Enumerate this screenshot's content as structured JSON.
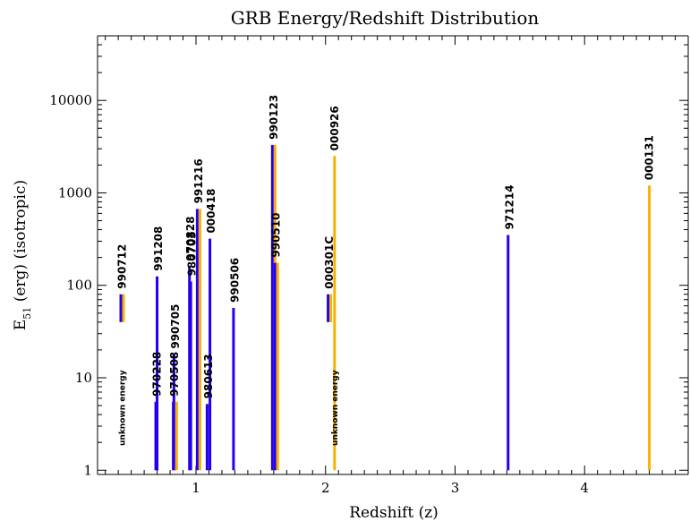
{
  "chart_data": {
    "type": "bar",
    "title": "GRB Energy/Redshift Distribution",
    "xlabel": "Redshift (z)",
    "ylabel_main": "E",
    "ylabel_sub": "51",
    "ylabel_rest": " (erg) (isotropic)",
    "xlim": [
      0.24,
      4.8
    ],
    "ylim": [
      0.9,
      50000
    ],
    "yscale": "log",
    "x_ticks": [
      1,
      2,
      3,
      4
    ],
    "x_tick_labels": [
      "1",
      "2",
      "3",
      "4"
    ],
    "y_ticks": [
      1,
      10,
      100,
      1000,
      10000
    ],
    "y_tick_labels": [
      "1",
      "10",
      "100",
      "1000",
      "10000"
    ],
    "colors": {
      "blue": "#2200ee",
      "orange": "#f8b000"
    },
    "bursts": [
      {
        "name": "990712",
        "z": 0.43,
        "blue": [
          40,
          80
        ],
        "orange": [
          40,
          80
        ],
        "note": "unknown energy"
      },
      {
        "name": "970228",
        "z": 0.7,
        "blue": [
          1,
          5.5
        ]
      },
      {
        "name": "991208",
        "z": 0.71,
        "blue": [
          1,
          125
        ]
      },
      {
        "name": "970508",
        "z": 0.835,
        "blue": [
          1,
          5.5
        ]
      },
      {
        "name": "990705",
        "z": 0.84,
        "blue": [
          1,
          18
        ],
        "orange": [
          1,
          5.5
        ]
      },
      {
        "name": "970828",
        "z": 0.96,
        "blue": [
          1,
          160
        ]
      },
      {
        "name": "980703",
        "z": 0.97,
        "blue": [
          1,
          110
        ]
      },
      {
        "name": "991216",
        "z": 1.02,
        "blue": [
          1,
          670
        ],
        "orange": [
          1,
          670
        ]
      },
      {
        "name": "980613",
        "z": 1.096,
        "blue": [
          1,
          5.2
        ]
      },
      {
        "name": "000418",
        "z": 1.118,
        "blue": [
          1,
          320
        ]
      },
      {
        "name": "990506",
        "z": 1.3,
        "blue": [
          1,
          57
        ]
      },
      {
        "name": "990123",
        "z": 1.6,
        "blue": [
          1,
          3300
        ],
        "orange": [
          1,
          3300
        ]
      },
      {
        "name": "990510",
        "z": 1.62,
        "blue": [
          1,
          175
        ],
        "orange": [
          1,
          175
        ]
      },
      {
        "name": "000301C",
        "z": 2.03,
        "blue": [
          40,
          80
        ],
        "orange": [
          40,
          80
        ]
      },
      {
        "name": "000926",
        "z": 2.07,
        "orange": [
          1,
          2500
        ],
        "note": "unknown energy"
      },
      {
        "name": "971214",
        "z": 3.42,
        "blue": [
          1,
          350
        ]
      },
      {
        "name": "000131",
        "z": 4.5,
        "orange": [
          1,
          1200
        ]
      }
    ]
  }
}
